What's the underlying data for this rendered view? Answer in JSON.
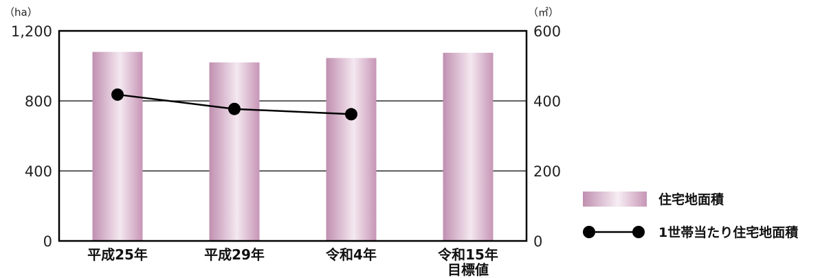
{
  "chart_data": {
    "type": "bar+line",
    "categories": [
      [
        "平成25年"
      ],
      [
        "平成29年"
      ],
      [
        "令和4年"
      ],
      [
        "令和15年",
        "目標値"
      ]
    ],
    "left_axis": {
      "unit": "（ha）",
      "ylim": [
        0,
        1200
      ],
      "ticks": [
        0,
        400,
        800,
        1200
      ],
      "tick_labels": [
        "0",
        "400",
        "800",
        "1,200"
      ]
    },
    "right_axis": {
      "unit": "（㎡）",
      "ylim": [
        0,
        600
      ],
      "ticks": [
        0,
        200,
        400,
        600
      ],
      "tick_labels": [
        "0",
        "200",
        "400",
        "600"
      ]
    },
    "series": [
      {
        "name": "住宅地面積",
        "kind": "bar",
        "axis": "left",
        "values": [
          1080,
          1020,
          1045,
          1075
        ],
        "color": "#c79ab8"
      },
      {
        "name": "1世帯当たり住宅地面積",
        "kind": "line",
        "axis": "right",
        "values": [
          418,
          377,
          362,
          null
        ],
        "color": "#000000"
      }
    ],
    "grid": true,
    "legend": "right"
  }
}
